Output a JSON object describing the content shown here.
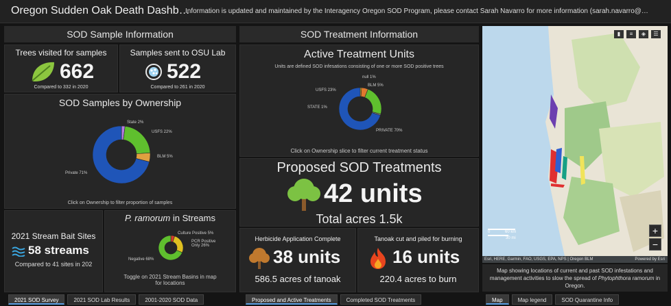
{
  "header": {
    "title": "Oregon Sudden Oak Death Dashb…",
    "info": "Information is updated and maintained by the Interagency Oregon SOD Program, please contact Sarah Navarro for more information (sarah.navarro@…"
  },
  "sample_info": {
    "section_title": "SOD Sample Information",
    "trees_visited": {
      "title": "Trees visited for samples",
      "value": "662",
      "sub": "Compared to 332 in 2020"
    },
    "samples_sent": {
      "title": "Samples sent to OSU Lab",
      "value": "522",
      "sub": "Compared to 261 in 2020"
    },
    "ownership_chart": {
      "title": "SOD Samples by Ownership",
      "note": "Click on Ownership to filter proportion of samples",
      "labels": {
        "state": "State 2%",
        "usfs": "USFS 22%",
        "blm": "BLM 5%",
        "private": "Private 71%"
      }
    },
    "stream_bait": {
      "title": "2021 Stream Bait Sites",
      "value": "58 streams",
      "sub": "Compared to 41 sites in 202"
    },
    "ramorum_chart": {
      "title_italic": "P. ramorum",
      "title_rest": " in Streams",
      "note": "Toggle on 2021 Stream Basins in map for locations",
      "labels": {
        "culture": "Culture Positive 5%",
        "pcr": "PCR Positive Only 26%",
        "negative": "Negative 68%"
      }
    }
  },
  "treatment_info": {
    "section_title": "SOD Treatment Information",
    "active_chart": {
      "title": "Active Treatment Units",
      "subtitle": "Units are defined SOD infesations consisting of one or more SOD positive trees",
      "note": "Click on Ownership slice to filter current treatment status",
      "labels": {
        "null": "null 1%",
        "blm": "BLM 5%",
        "usfs": "USFS 23%",
        "state": "STATE 1%",
        "private": "PRIVATE 70%"
      }
    },
    "proposed": {
      "title": "Proposed SOD Treatments",
      "value": "42 units",
      "sub": "Total acres 1.5k"
    },
    "herbicide": {
      "title": "Herbicide Application Complete",
      "value": "38 units",
      "sub": "586.5 acres of tanoak"
    },
    "tanoak": {
      "title": "Tanoak cut and piled for burning",
      "value": "16 units",
      "sub": "220.4 acres to burn"
    }
  },
  "chart_data": [
    {
      "type": "pie",
      "title": "SOD Samples by Ownership",
      "categories": [
        "State",
        "USFS",
        "BLM",
        "Private"
      ],
      "values": [
        2,
        22,
        5,
        71
      ],
      "colors": [
        "#b57be0",
        "#5fbf2e",
        "#e0a040",
        "#1f55b8"
      ]
    },
    {
      "type": "pie",
      "title": "P. ramorum in Streams",
      "categories": [
        "Culture Positive",
        "PCR Positive Only",
        "Negative"
      ],
      "values": [
        5,
        26,
        68
      ],
      "colors": [
        "#d63b2e",
        "#e0c020",
        "#5fbf2e"
      ]
    },
    {
      "type": "pie",
      "title": "Active Treatment Units",
      "categories": [
        "null",
        "BLM",
        "USFS",
        "STATE",
        "PRIVATE"
      ],
      "values": [
        1,
        5,
        23,
        1,
        70
      ],
      "colors": [
        "#e0c020",
        "#e07a2e",
        "#5fbf2e",
        "#8a8a8a",
        "#1f55b8"
      ]
    }
  ],
  "map": {
    "scale_km": "60 km",
    "scale_mi": "30 mi",
    "scale_zero": "0",
    "attribution": "Esri, HERE, Garmin, FAO, USGS, EPA, NPS | Oregon BLM",
    "attribution_right": "Powered by Esri",
    "zoom_in": "+",
    "zoom_out": "−",
    "caption_pre": "Map showing locations of current and past SOD infestations and management activities to slow the spread of ",
    "caption_italic": "Phytophthora ramorum",
    "caption_post": " in Oregon."
  },
  "tabs_left": [
    "2021 SOD Survey",
    "2021 SOD Lab Results",
    "2001-2020 SOD Data"
  ],
  "tabs_mid": [
    "Proposed and Active Treatments",
    "Completed SOD Treatments"
  ],
  "tabs_right": [
    "Map",
    "Map legend",
    "SOD Quarantine Info"
  ]
}
